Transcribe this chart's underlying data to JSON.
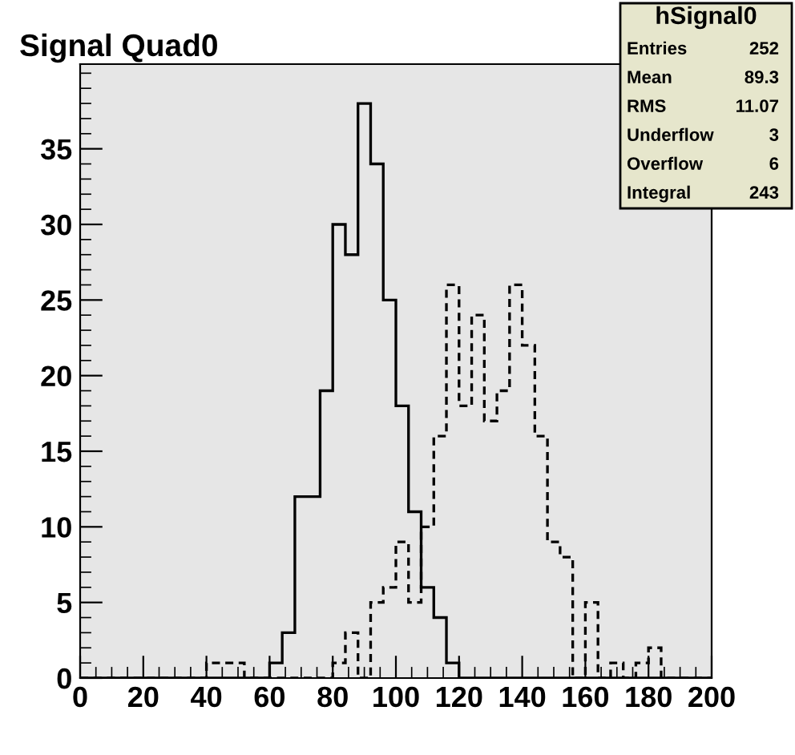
{
  "chart_data": {
    "type": "histogram",
    "title": "Signal Quad0",
    "bins": [
      0,
      4,
      8,
      12,
      16,
      20,
      24,
      28,
      32,
      36,
      40,
      44,
      48,
      52,
      56,
      60,
      64,
      68,
      72,
      76,
      80,
      84,
      88,
      92,
      96,
      100,
      104,
      108,
      112,
      116,
      120,
      124,
      128,
      132,
      136,
      140,
      144,
      148,
      152,
      156,
      160,
      164,
      168,
      172,
      176,
      180,
      184,
      188,
      192,
      196,
      200
    ],
    "series": [
      {
        "color": "#000000",
        "line_style": "solid",
        "values": [
          0,
          0,
          0,
          0,
          0,
          0,
          0,
          0,
          0,
          0,
          0,
          0,
          0,
          0,
          0,
          1,
          3,
          12,
          12,
          19,
          30,
          28,
          38,
          34,
          25,
          18,
          11,
          6,
          4,
          1,
          0,
          0,
          0,
          0,
          0,
          0,
          0,
          0,
          0,
          0,
          0,
          0,
          0,
          0,
          0,
          0,
          0,
          0,
          0,
          0
        ]
      },
      {
        "color": "#000000",
        "line_style": "dashed",
        "values": [
          0,
          0,
          0,
          0,
          0,
          0,
          0,
          0,
          0,
          0,
          1,
          1,
          1,
          0,
          0,
          0,
          0,
          0,
          0,
          0,
          1,
          3,
          0,
          5,
          6,
          9,
          5,
          10,
          16,
          26,
          18,
          24,
          17,
          19,
          26,
          22,
          16,
          9,
          8,
          0,
          5,
          0,
          1,
          0,
          1,
          2,
          0,
          0,
          0,
          0
        ]
      }
    ],
    "xlim": [
      0,
      200
    ],
    "xticks": [
      0,
      20,
      40,
      60,
      80,
      100,
      120,
      140,
      160,
      180,
      200
    ],
    "ylim": [
      0,
      40.6
    ],
    "yticks": [
      0,
      5,
      10,
      15,
      20,
      25,
      30,
      35
    ],
    "grid": false,
    "annotations": [
      "hSignal0",
      "Entries",
      "252",
      "Mean",
      "89.3",
      "RMS",
      "11.07",
      "Underflow",
      "3",
      "Overflow",
      "6",
      "Integral",
      "243"
    ]
  }
}
